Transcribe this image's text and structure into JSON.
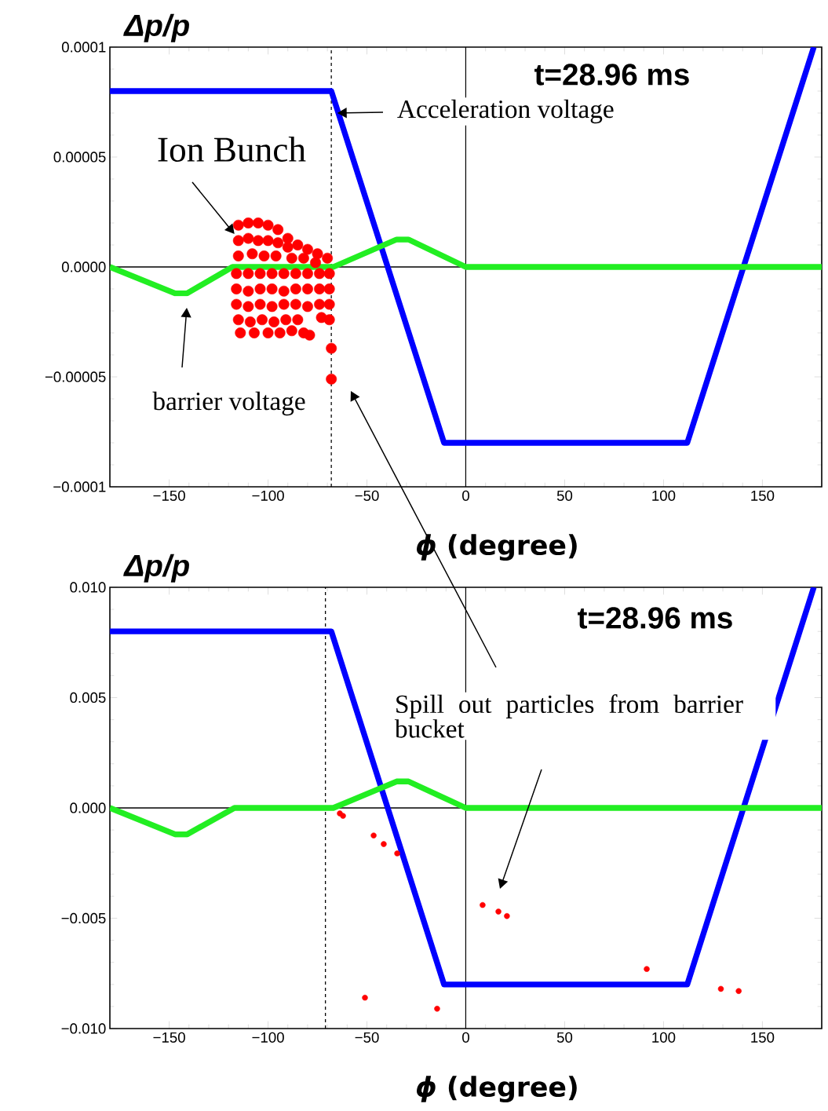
{
  "chart_data": [
    {
      "type": "line",
      "xlabel": "*ϕ* (degree)",
      "ylabel": "Δp/p",
      "xlim": [
        -180,
        180
      ],
      "ylim": [
        -0.0001,
        0.0001
      ],
      "xticks": [
        {
          "value": -150,
          "label": "−150"
        },
        {
          "value": -100,
          "label": "−100"
        },
        {
          "value": -50,
          "label": "−50"
        },
        {
          "value": 0,
          "label": "0"
        },
        {
          "value": 50,
          "label": "50"
        },
        {
          "value": 100,
          "label": "100"
        },
        {
          "value": 150,
          "label": "150"
        }
      ],
      "yticks": [
        {
          "value": -0.0001,
          "label": "−0.0001"
        },
        {
          "value": -5e-05,
          "label": "−0.00005"
        },
        {
          "value": 0,
          "label": "0.0000"
        },
        {
          "value": 5e-05,
          "label": "0.00005"
        },
        {
          "value": 0.0001,
          "label": "0.0001"
        }
      ],
      "series": [
        {
          "color": "#0000ff",
          "x": [
            -180,
            -68,
            -11,
            112,
            176
          ],
          "values": [
            8e-05,
            8e-05,
            -8e-05,
            -8e-05,
            0.0001
          ]
        },
        {
          "color": "#22ee22",
          "x": [
            -180,
            -147,
            -141,
            -118,
            -67,
            -35,
            -29,
            0,
            180
          ],
          "values": [
            0,
            -1.2e-05,
            -1.2e-05,
            0,
            0,
            1.25e-05,
            1.25e-05,
            0,
            0
          ]
        },
        {
          "type": "scatter",
          "color": "#ff0000",
          "marker": "circle",
          "x": [
            -115,
            -110,
            -105,
            -100,
            -95,
            -90,
            -85,
            -80,
            -75,
            -70,
            -115,
            -110,
            -105,
            -100,
            -95,
            -90,
            -115,
            -108,
            -102,
            -96,
            -88,
            -82,
            -76,
            -116,
            -110,
            -104,
            -98,
            -92,
            -86,
            -80,
            -74,
            -69,
            -116,
            -110,
            -104,
            -98,
            -92,
            -86,
            -80,
            -74,
            -69,
            -116,
            -110,
            -104,
            -98,
            -92,
            -86,
            -80,
            -74,
            -69,
            -115,
            -109,
            -103,
            -97,
            -91,
            -85,
            -73,
            -69,
            -114,
            -107,
            -100,
            -94,
            -88,
            -82,
            -79,
            -68,
            -68
          ],
          "values": [
            1.9e-05,
            2e-05,
            2e-05,
            1.9e-05,
            1.7e-05,
            1.3e-05,
            1e-05,
            8e-06,
            6e-06,
            4e-06,
            1.2e-05,
            1.3e-05,
            1.2e-05,
            1.2e-05,
            1.1e-05,
            9e-06,
            5e-06,
            6e-06,
            5e-06,
            5e-06,
            4e-06,
            4e-06,
            2e-06,
            -3e-06,
            -3e-06,
            -3e-06,
            -3e-06,
            -3e-06,
            -3e-06,
            -3e-06,
            -3e-06,
            -3e-06,
            -1e-05,
            -1.1e-05,
            -1e-05,
            -1e-05,
            -1.1e-05,
            -1e-05,
            -1e-05,
            -1e-05,
            -1e-05,
            -1.7e-05,
            -1.8e-05,
            -1.7e-05,
            -1.8e-05,
            -1.7e-05,
            -1.7e-05,
            -1.8e-05,
            -1.7e-05,
            -1.7e-05,
            -2.4e-05,
            -2.5e-05,
            -2.4e-05,
            -2.5e-05,
            -2.4e-05,
            -2.4e-05,
            -2.3e-05,
            -2.4e-05,
            -3e-05,
            -3e-05,
            -3e-05,
            -3e-05,
            -2.9e-05,
            -3e-05,
            -3.1e-05,
            -3.7e-05,
            -5.1e-05
          ]
        }
      ],
      "ref_lines": [
        {
          "axis": "x",
          "value": -68,
          "color": "#000000",
          "line_style": "dashed"
        },
        {
          "axis": "x",
          "value": 0,
          "color": "#000000",
          "line_style": "solid"
        },
        {
          "axis": "y",
          "value": 0,
          "color": "#000000",
          "line_style": "solid"
        }
      ],
      "annotations": [
        "t=28.96 ms",
        {
          "text": "Acceleration voltage",
          "x": -65,
          "y": 7e-05
        },
        {
          "text": "Ion Bunch",
          "x": -117,
          "y": 1.5e-05
        },
        "barrier voltage"
      ]
    },
    {
      "type": "line",
      "xlabel": "*ϕ* (degree)",
      "ylabel": "Δp/p",
      "xlim": [
        -180,
        180
      ],
      "ylim": [
        -0.01,
        0.01
      ],
      "xticks": [
        {
          "value": -150,
          "label": "−150"
        },
        {
          "value": -100,
          "label": "−100"
        },
        {
          "value": -50,
          "label": "−50"
        },
        {
          "value": 0,
          "label": "0"
        },
        {
          "value": 50,
          "label": "50"
        },
        {
          "value": 100,
          "label": "100"
        },
        {
          "value": 150,
          "label": "150"
        }
      ],
      "yticks": [
        {
          "value": -0.01,
          "label": "−0.010"
        },
        {
          "value": -0.005,
          "label": "−0.005"
        },
        {
          "value": 0,
          "label": "0.000"
        },
        {
          "value": 0.005,
          "label": "0.005"
        },
        {
          "value": 0.01,
          "label": "0.010"
        }
      ],
      "series": [
        {
          "color": "#0000ff",
          "x": [
            -180,
            -68,
            -11,
            112,
            176
          ],
          "values": [
            0.008,
            0.008,
            -0.008,
            -0.008,
            0.01
          ]
        },
        {
          "color": "#22ee22",
          "x": [
            -180,
            -147,
            -141,
            -117,
            -67,
            -35,
            -29,
            0,
            180
          ],
          "values": [
            0,
            -0.0012,
            -0.0012,
            0,
            0,
            0.0012,
            0.0012,
            0,
            0
          ]
        },
        {
          "type": "scatter",
          "color": "#ff0000",
          "marker": "circle",
          "x": [
            -63.7,
            -62.1,
            -46.6,
            -41.5,
            -34.7,
            8.5,
            16.5,
            20.8,
            -51,
            -14.5,
            91.5,
            129,
            138
          ],
          "values": [
            -0.00025,
            -0.00036,
            -0.00125,
            -0.00164,
            -0.00206,
            -0.0044,
            -0.0047,
            -0.0049,
            -0.0086,
            -0.0091,
            -0.0073,
            -0.0082,
            -0.0083
          ]
        }
      ],
      "ref_lines": [
        {
          "axis": "x",
          "value": -71,
          "color": "#000000",
          "line_style": "dashed"
        },
        {
          "axis": "x",
          "value": 0,
          "color": "#000000",
          "line_style": "solid"
        },
        {
          "axis": "y",
          "value": 0,
          "color": "#000000",
          "line_style": "solid"
        }
      ],
      "annotations": [
        "t=28.96 ms",
        "Spill out particles from barrier bucket"
      ]
    }
  ]
}
